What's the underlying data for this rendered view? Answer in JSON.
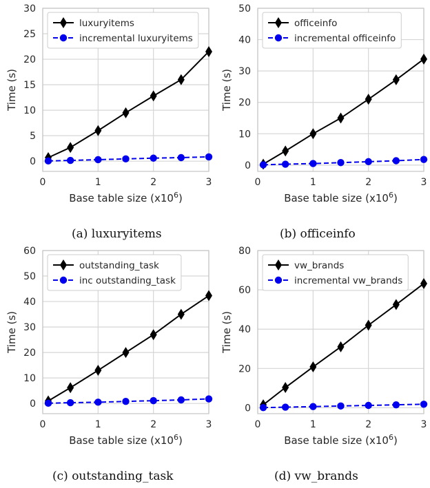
{
  "chart_data": [
    {
      "type": "line",
      "caption": "(a) luxuryitems",
      "xlabel": "Base table size (x10",
      "xlabel_sup": "6",
      "xlabel_suffix": ")",
      "ylabel": "Time (s)",
      "xlim": [
        0,
        3
      ],
      "ylim": [
        -2,
        30
      ],
      "xticks": [
        0,
        1,
        2,
        3
      ],
      "yticks": [
        0,
        5,
        10,
        15,
        20,
        25,
        30
      ],
      "grid": true,
      "legend_position": "top-left",
      "series": [
        {
          "name": "luxuryitems",
          "color": "#000000",
          "marker": "diamond",
          "linestyle": "solid",
          "x": [
            0.1,
            0.5,
            1.0,
            1.5,
            2.0,
            2.5,
            3.0
          ],
          "y": [
            0.7,
            2.7,
            6.0,
            9.5,
            12.8,
            16.0,
            21.5
          ]
        },
        {
          "name": "incremental luxuryitems",
          "color": "#0000ee",
          "marker": "circle",
          "linestyle": "dashed",
          "x": [
            0.1,
            0.5,
            1.0,
            1.5,
            2.0,
            2.5,
            3.0
          ],
          "y": [
            0.05,
            0.15,
            0.3,
            0.45,
            0.6,
            0.7,
            0.85
          ]
        }
      ]
    },
    {
      "type": "line",
      "caption": "(b) officeinfo",
      "xlabel": "Base table size (x10",
      "xlabel_sup": "6",
      "xlabel_suffix": ")",
      "ylabel": "Time (s)",
      "xlim": [
        0,
        3
      ],
      "ylim": [
        -2,
        50
      ],
      "xticks": [
        0,
        1,
        2,
        3
      ],
      "yticks": [
        0,
        10,
        20,
        30,
        40,
        50
      ],
      "grid": true,
      "legend_position": "top-left",
      "series": [
        {
          "name": "officeinfo",
          "color": "#000000",
          "marker": "diamond",
          "linestyle": "solid",
          "x": [
            0.1,
            0.5,
            1.0,
            1.5,
            2.0,
            2.5,
            3.0
          ],
          "y": [
            0.3,
            4.5,
            10.0,
            15.0,
            21.0,
            27.2,
            33.8
          ]
        },
        {
          "name": "incremental officeinfo",
          "color": "#0000ee",
          "marker": "circle",
          "linestyle": "dashed",
          "x": [
            0.1,
            0.5,
            1.0,
            1.5,
            2.0,
            2.5,
            3.0
          ],
          "y": [
            0.1,
            0.3,
            0.5,
            0.8,
            1.1,
            1.4,
            1.8
          ]
        }
      ]
    },
    {
      "type": "line",
      "caption": "(c) outstanding_task",
      "xlabel": "Base table size (x10",
      "xlabel_sup": "6",
      "xlabel_suffix": ")",
      "ylabel": "Time (s)",
      "xlim": [
        0,
        3
      ],
      "ylim": [
        -4,
        60
      ],
      "xticks": [
        0,
        1,
        2,
        3
      ],
      "yticks": [
        0,
        10,
        20,
        30,
        40,
        50,
        60
      ],
      "grid": true,
      "legend_position": "top-left",
      "series": [
        {
          "name": "outstanding_task",
          "color": "#000000",
          "marker": "diamond",
          "linestyle": "solid",
          "x": [
            0.1,
            0.5,
            1.0,
            1.5,
            2.0,
            2.5,
            3.0
          ],
          "y": [
            1.0,
            6.2,
            13.0,
            20.0,
            27.0,
            35.0,
            42.3
          ]
        },
        {
          "name": "inc outstanding_task",
          "color": "#0000ee",
          "marker": "circle",
          "linestyle": "dashed",
          "x": [
            0.1,
            0.5,
            1.0,
            1.5,
            2.0,
            2.5,
            3.0
          ],
          "y": [
            0.1,
            0.3,
            0.5,
            0.8,
            1.1,
            1.4,
            1.8
          ]
        }
      ]
    },
    {
      "type": "line",
      "caption": "(d) vw_brands",
      "xlabel": "Base table size (x10",
      "xlabel_sup": "6",
      "xlabel_suffix": ")",
      "ylabel": "Time (s)",
      "xlim": [
        0,
        3
      ],
      "ylim": [
        -3,
        80
      ],
      "xticks": [
        0,
        1,
        2,
        3
      ],
      "yticks": [
        0,
        20,
        40,
        60,
        80
      ],
      "grid": true,
      "legend_position": "top-left",
      "series": [
        {
          "name": "vw_brands",
          "color": "#000000",
          "marker": "diamond",
          "linestyle": "solid",
          "x": [
            0.1,
            0.5,
            1.0,
            1.5,
            2.0,
            2.5,
            3.0
          ],
          "y": [
            1.5,
            10.3,
            20.8,
            31.0,
            42.0,
            52.5,
            63.2
          ]
        },
        {
          "name": "incremental vw_brands",
          "color": "#0000ee",
          "marker": "circle",
          "linestyle": "dashed",
          "x": [
            0.1,
            0.5,
            1.0,
            1.5,
            2.0,
            2.5,
            3.0
          ],
          "y": [
            0.1,
            0.3,
            0.6,
            0.9,
            1.2,
            1.5,
            1.8
          ]
        }
      ]
    }
  ]
}
